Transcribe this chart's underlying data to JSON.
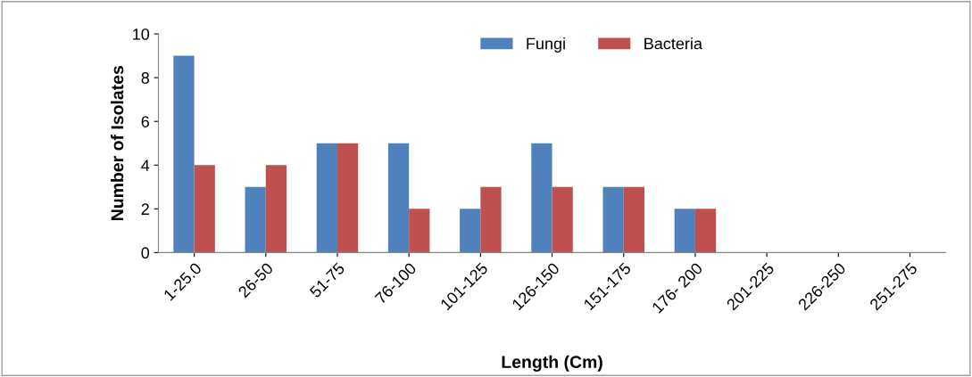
{
  "chart_data": {
    "type": "bar",
    "xlabel": "Length (Cm)",
    "ylabel": "Number of Isolates",
    "categories": [
      "1-25.0",
      "26-50",
      "51-75",
      "76-100",
      "101-125",
      "126-150",
      "151-175",
      "176- 200",
      "201-225",
      "226-250",
      "251-275"
    ],
    "series": [
      {
        "name": "Fungi",
        "color": "#4f81bd",
        "values": [
          9,
          3,
          5,
          5,
          2,
          5,
          3,
          2,
          0,
          0,
          0
        ]
      },
      {
        "name": "Bacteria",
        "color": "#c0504d",
        "values": [
          4,
          4,
          5,
          2,
          3,
          3,
          3,
          2,
          0,
          0,
          0
        ]
      }
    ],
    "ylim": [
      0,
      10
    ],
    "yticks": [
      0,
      2,
      4,
      6,
      8,
      10
    ],
    "grid": false,
    "legend": "top"
  }
}
